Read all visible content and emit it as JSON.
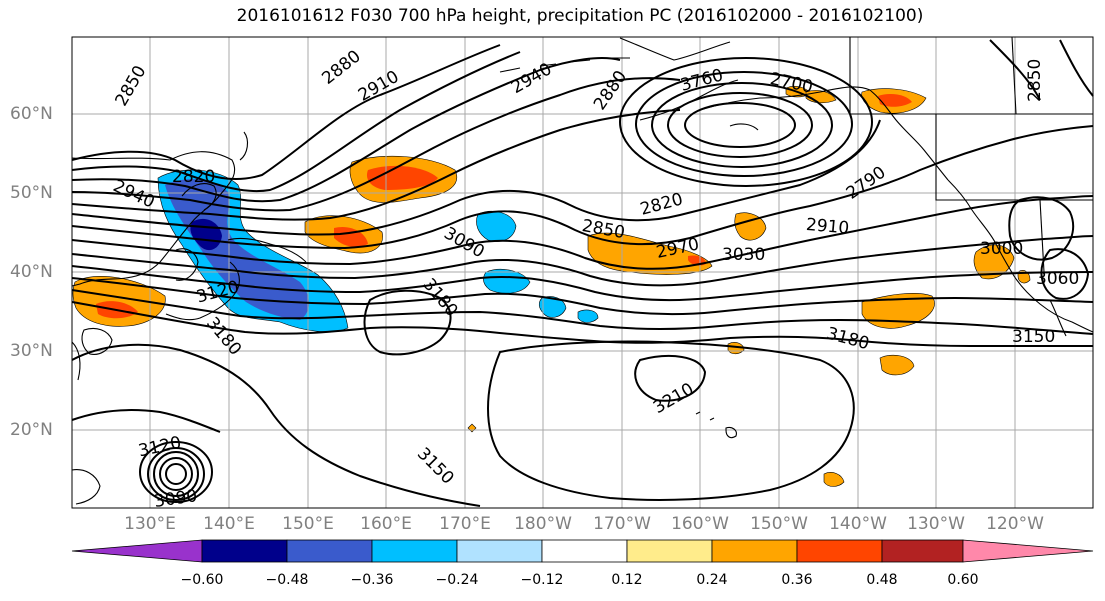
{
  "title": "2016101612 F030 700 hPa height, precipitation PC (2016102000 - 2016102100)",
  "lat_labels": [
    "60°N",
    "50°N",
    "40°N",
    "30°N",
    "20°N"
  ],
  "lon_labels": [
    "130°E",
    "140°E",
    "150°E",
    "160°E",
    "170°E",
    "180°W",
    "170°W",
    "160°W",
    "150°W",
    "140°W",
    "130°W",
    "120°W"
  ],
  "contour_labels": [
    "2850",
    "2880",
    "2910",
    "2940",
    "2880",
    "3760",
    "2700",
    "2850",
    "2820",
    "2940",
    "2790",
    "2820",
    "2910",
    "2850",
    "2970",
    "3030",
    "3090",
    "3000",
    "3060",
    "3120",
    "3180",
    "3180",
    "3150",
    "3180",
    "3210",
    "3120",
    "3090",
    "3150"
  ],
  "colorbar": {
    "labels": [
      "−0.60",
      "−0.48",
      "−0.36",
      "−0.24",
      "−0.12",
      "0.12",
      "0.24",
      "0.36",
      "0.48",
      "0.60"
    ],
    "colors": [
      "#9932cc",
      "#00008b",
      "#3a5bcc",
      "#00bfff",
      "#b0e2ff",
      "#ffffff",
      "#ffec8b",
      "#ffa500",
      "#ff4500",
      "#b22222",
      "#ff88aa"
    ]
  }
}
